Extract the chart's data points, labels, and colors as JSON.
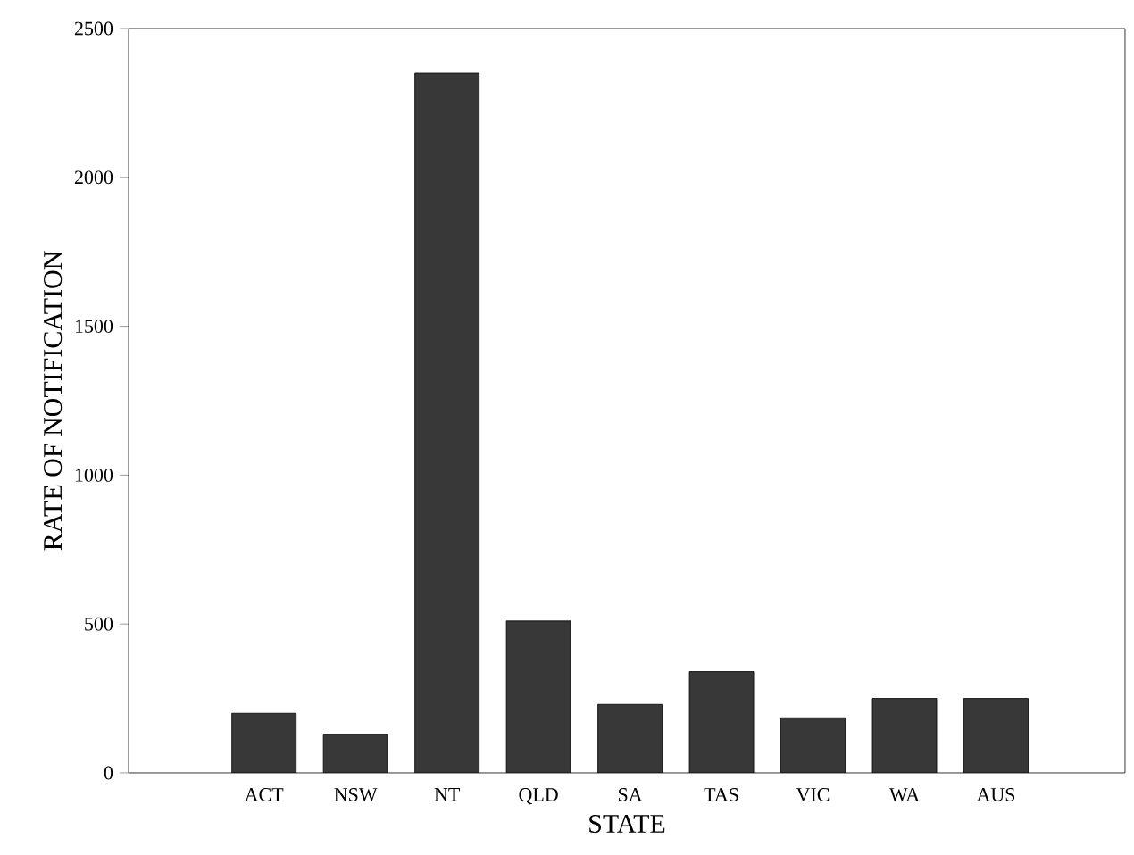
{
  "chart_data": {
    "type": "bar",
    "xlabel": "STATE",
    "ylabel": "RATE OF NOTIFICATION",
    "categories": [
      "ACT",
      "NSW",
      "NT",
      "QLD",
      "SA",
      "TAS",
      "VIC",
      "WA",
      "AUS"
    ],
    "values": [
      200,
      130,
      2350,
      510,
      230,
      340,
      185,
      250,
      250
    ],
    "color": "#383838",
    "ylim": [
      0,
      2500
    ],
    "yticks": [
      0,
      500,
      1000,
      1500,
      2000,
      2500
    ]
  }
}
